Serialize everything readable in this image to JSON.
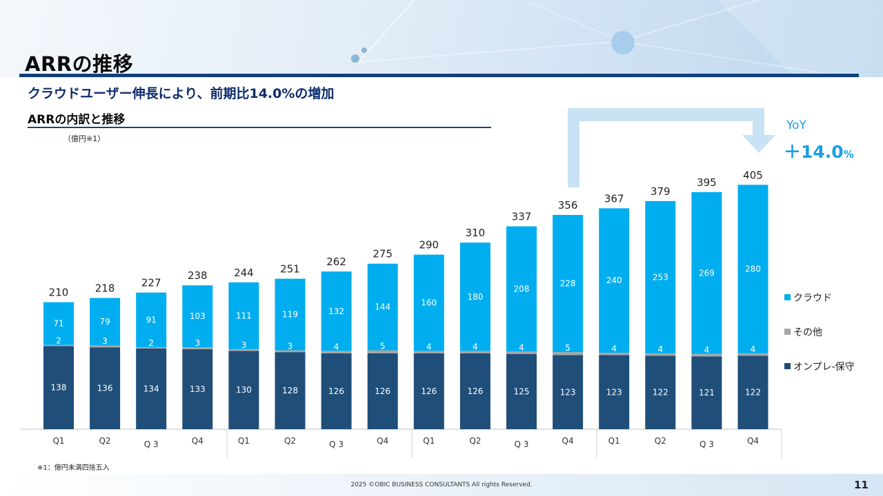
{
  "page": {
    "title": "ARRの推移",
    "subtitle": "クラウドユーザー伸長により、前期比14.0%の増加",
    "section_title": "ARRの内訳と推移",
    "unit": "（億円※1）",
    "footnote": "※1：億円未満四捨五入",
    "copyright": "2025 ©OBIC BUSINESS CONSULTANTS All rights Reserved.",
    "page_number": "11"
  },
  "yoy": {
    "label": "YoY",
    "value": "＋14.0",
    "percent_sign": "%"
  },
  "colors": {
    "cloud": "#00aeef",
    "other": "#a6a6a6",
    "onprem": "#1f4e79",
    "accent": "#1a9ee0",
    "arrow": "#c9e2f4"
  },
  "legend": [
    {
      "label": "クラウド",
      "color": "#00aeef"
    },
    {
      "label": "その他",
      "color": "#a6a6a6"
    },
    {
      "label": "オンプレ-保守",
      "color": "#1f4e79"
    }
  ],
  "chart_data": {
    "type": "bar",
    "stacked": true,
    "categories": [
      "Q1",
      "Q2",
      "Q 3",
      "Q4",
      "Q1",
      "Q2",
      "Q 3",
      "Q4",
      "Q1",
      "Q2",
      "Q 3",
      "Q4",
      "Q1",
      "Q2",
      "Q 3",
      "Q4"
    ],
    "series": [
      {
        "name": "オンプレ-保守",
        "color": "#1f4e79",
        "values": [
          138,
          136,
          134,
          133,
          130,
          128,
          126,
          126,
          126,
          126,
          125,
          123,
          123,
          122,
          121,
          122
        ]
      },
      {
        "name": "その他",
        "color": "#a6a6a6",
        "values": [
          2,
          3,
          2,
          3,
          3,
          3,
          4,
          5,
          4,
          4,
          4,
          5,
          4,
          4,
          4,
          4
        ]
      },
      {
        "name": "クラウド",
        "color": "#00aeef",
        "values": [
          71,
          79,
          91,
          103,
          111,
          119,
          132,
          144,
          160,
          180,
          208,
          228,
          240,
          253,
          269,
          280
        ]
      }
    ],
    "totals": [
      210,
      218,
      227,
      238,
      244,
      251,
      262,
      275,
      290,
      310,
      337,
      356,
      367,
      379,
      395,
      405
    ],
    "ylim": [
      0,
      450
    ]
  }
}
